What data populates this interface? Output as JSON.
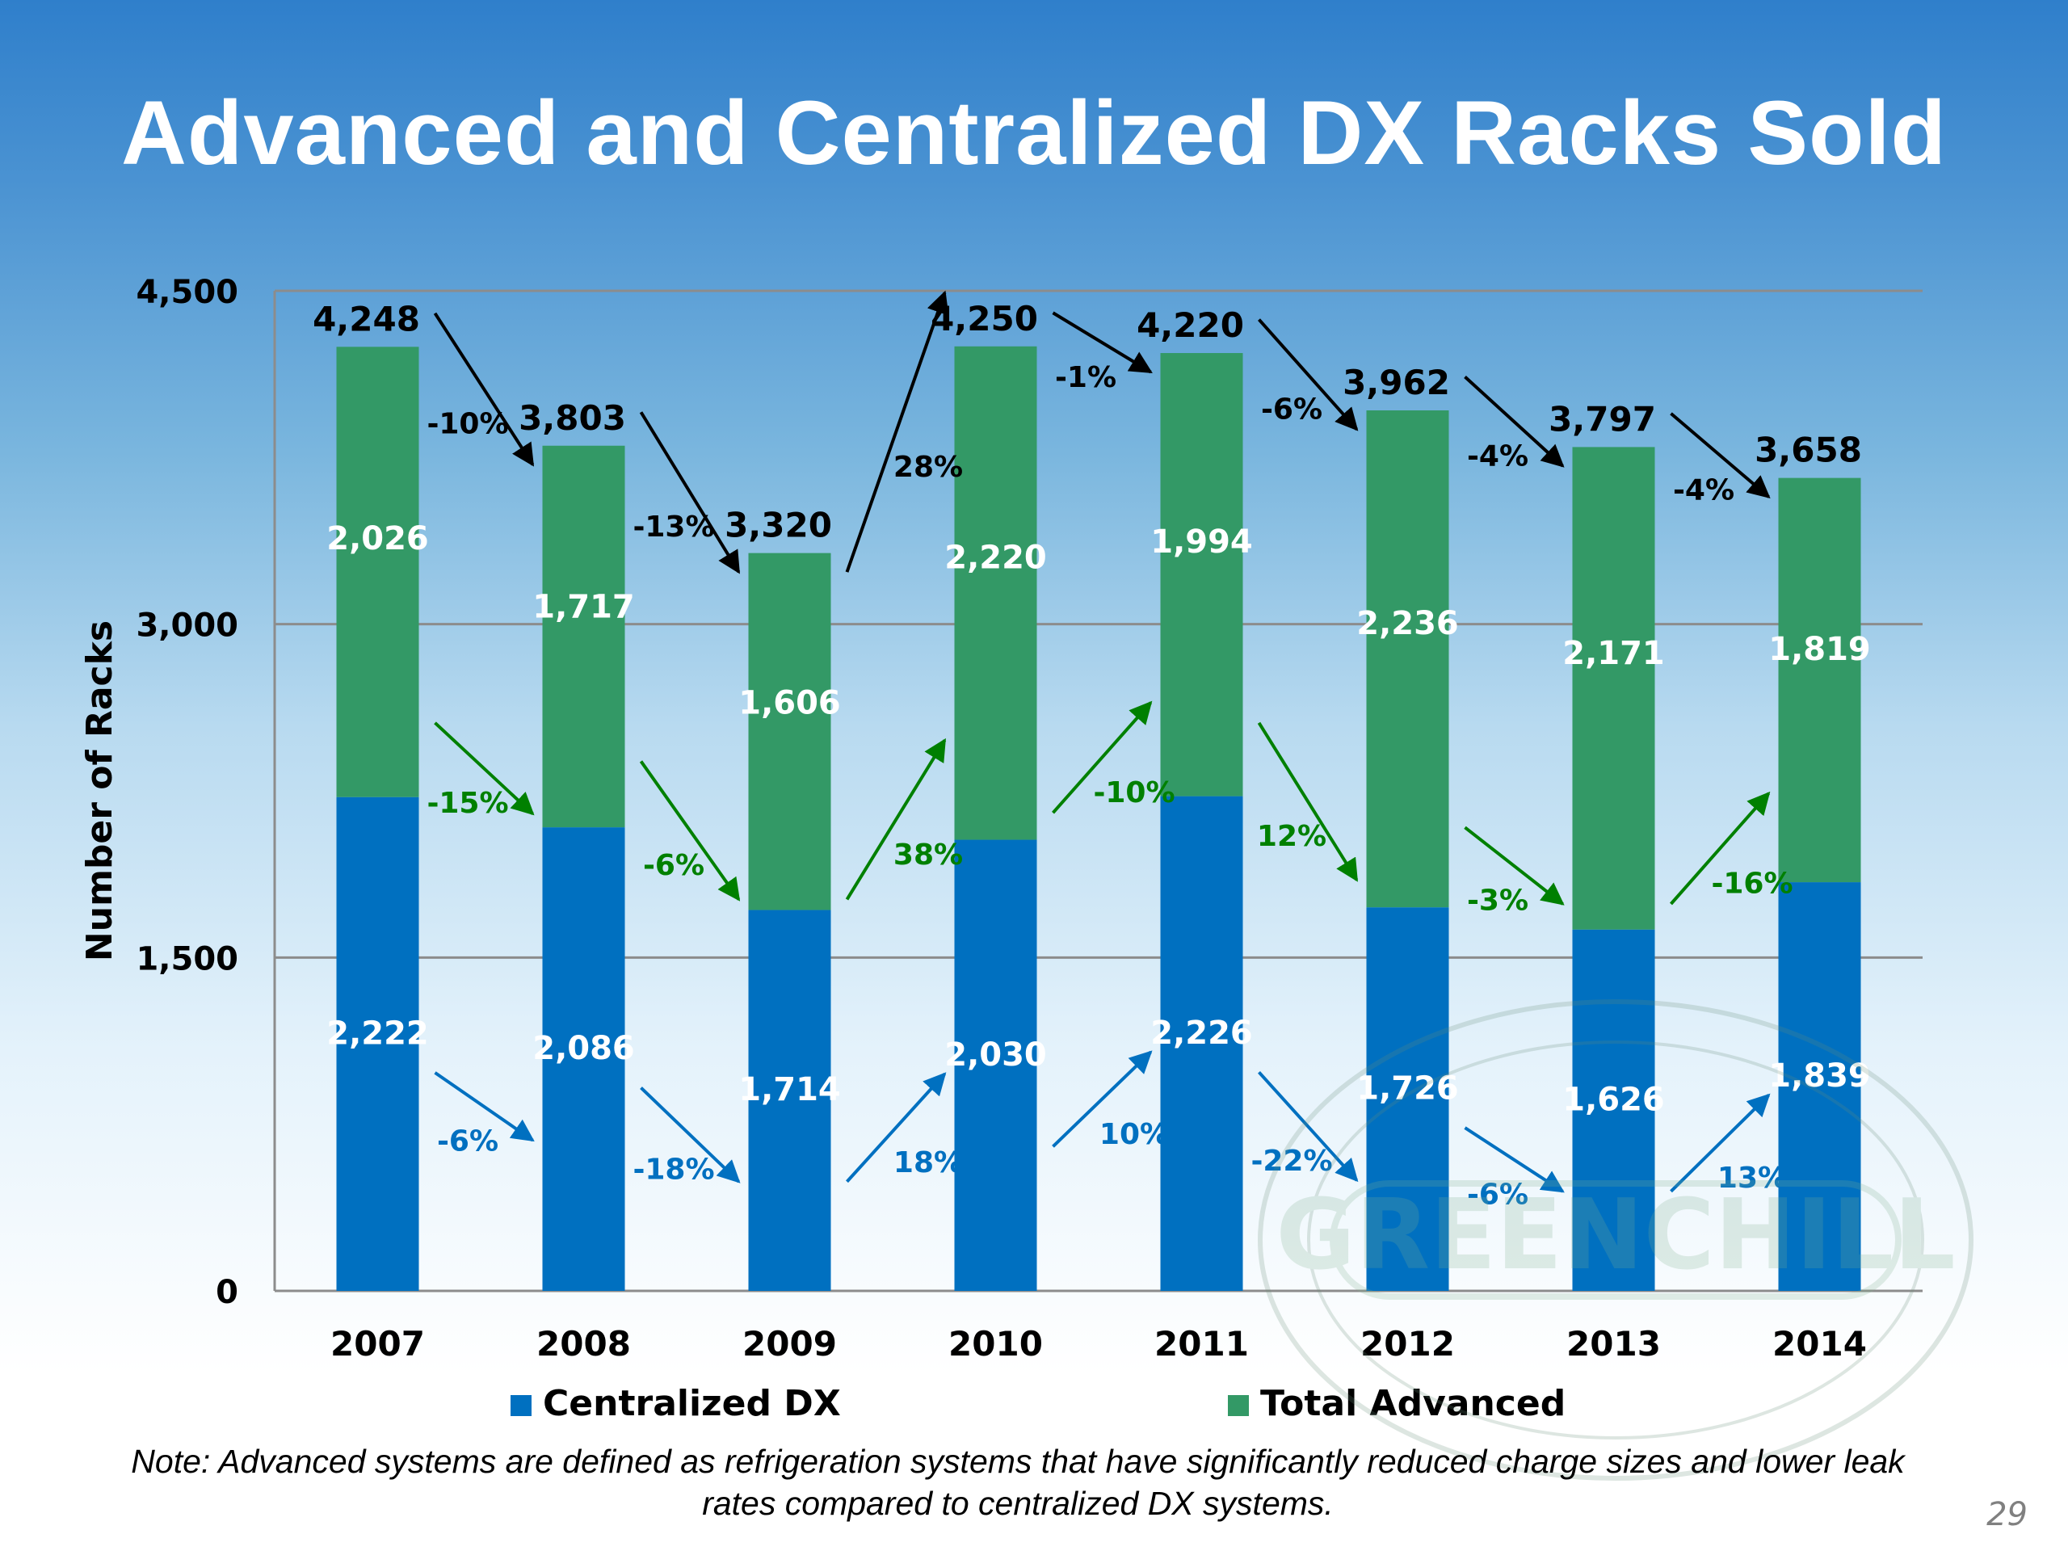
{
  "page": {
    "title": "Advanced and Centralized DX Racks Sold",
    "note": "Note: Advanced systems are defined as refrigeration systems that have significantly reduced charge sizes and lower leak rates compared to centralized DX systems.",
    "page_number": "29",
    "watermark_text": "GREENCHILL"
  },
  "chart_data": {
    "type": "bar",
    "stacked": true,
    "title": "Advanced and Centralized DX Racks Sold",
    "xlabel": "",
    "ylabel": "Number of Racks",
    "ylim": [
      0,
      4500
    ],
    "yticks": [
      0,
      1500,
      3000,
      4500
    ],
    "ytick_labels": [
      "0",
      "1,500",
      "3,000",
      "4,500"
    ],
    "grid": true,
    "legend_position": "bottom",
    "categories": [
      "2007",
      "2008",
      "2009",
      "2010",
      "2011",
      "2012",
      "2013",
      "2014"
    ],
    "series": [
      {
        "name": "Centralized DX",
        "color": "#0070c0",
        "values": [
          2222,
          2086,
          1714,
          2030,
          2226,
          1726,
          1626,
          1839
        ],
        "labels": [
          "2,222",
          "2,086",
          "1,714",
          "2,030",
          "2,226",
          "1,726",
          "1,626",
          "1,839"
        ],
        "changes": [
          "-6%",
          "-18%",
          "18%",
          "10%",
          "-22%",
          "-6%",
          "13%"
        ],
        "change_color": "#0070c0"
      },
      {
        "name": "Total Advanced",
        "color": "#339966",
        "values": [
          2026,
          1717,
          1606,
          2220,
          1994,
          2236,
          2171,
          1819
        ],
        "labels": [
          "2,026",
          "1,717",
          "1,606",
          "2,220",
          "1,994",
          "2,236",
          "2,171",
          "1,819"
        ],
        "changes": [
          "-15%",
          "-6%",
          "38%",
          "-10%",
          "12%",
          "-3%",
          "-16%"
        ],
        "change_color": "#008000"
      }
    ],
    "totals": [
      4248,
      3803,
      3320,
      4250,
      4220,
      3962,
      3797,
      3658
    ],
    "total_labels": [
      "4,248",
      "3,803",
      "3,320",
      "4,250",
      "4,220",
      "3,962",
      "3,797",
      "3,658"
    ],
    "total_changes": [
      "-10%",
      "-13%",
      "28%",
      "-1%",
      "-6%",
      "-4%",
      "-4%"
    ],
    "total_change_color": "#000000"
  }
}
